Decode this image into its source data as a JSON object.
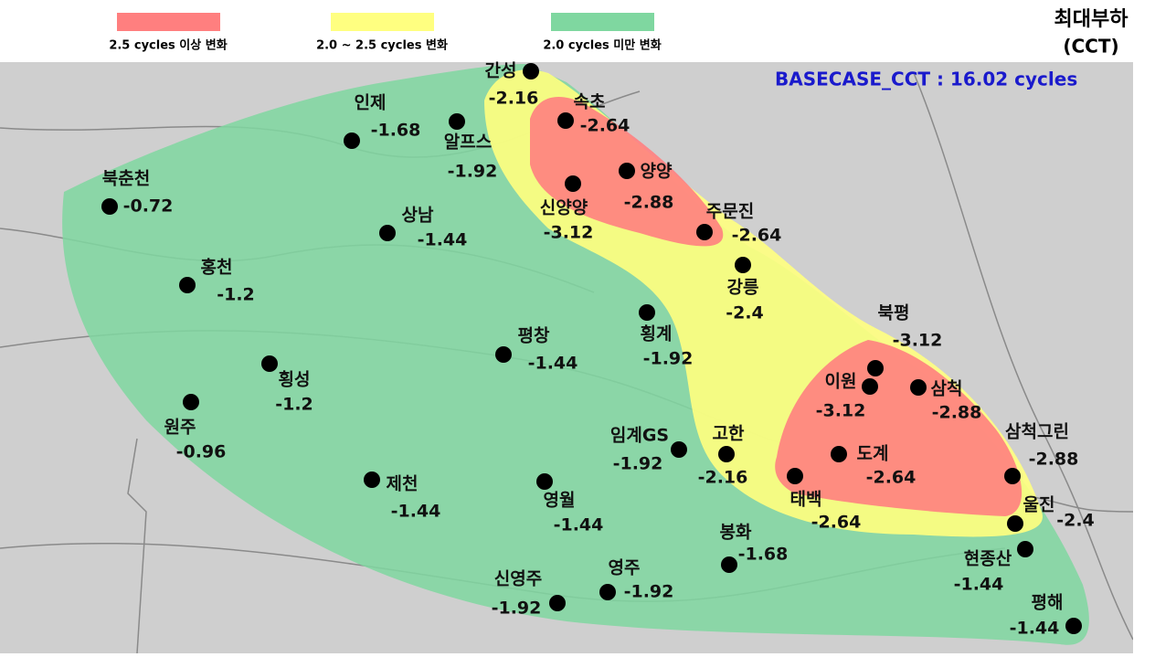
{
  "legend": [
    {
      "label": "2.5 cycles 이상 변화",
      "color": "#ff7f7f"
    },
    {
      "label": "2.0 ~ 2.5 cycles 변화",
      "color": "#ffff80"
    },
    {
      "label": "2.0 cycles 미만 변화",
      "color": "#7fd7a0"
    }
  ],
  "title": {
    "line1": "최대부하",
    "line2": "(CCT)"
  },
  "basecase": "BASECASE_CCT : 16.02 cycles",
  "points": [
    {
      "name": "간성",
      "value": "-2.16"
    },
    {
      "name": "인제",
      "value": "-1.68"
    },
    {
      "name": "알프스",
      "value": "-1.92"
    },
    {
      "name": "속초",
      "value": "-2.64"
    },
    {
      "name": "양양",
      "value": "-2.88"
    },
    {
      "name": "신양양",
      "value": "-3.12"
    },
    {
      "name": "북춘천",
      "value": "-0.72"
    },
    {
      "name": "상남",
      "value": "-1.44"
    },
    {
      "name": "주문진",
      "value": "-2.64"
    },
    {
      "name": "홍천",
      "value": "-1.2"
    },
    {
      "name": "강릉",
      "value": "-2.4"
    },
    {
      "name": "횡계",
      "value": "-1.92"
    },
    {
      "name": "평창",
      "value": "-1.44"
    },
    {
      "name": "북평",
      "value": "-3.12"
    },
    {
      "name": "횡성",
      "value": "-1.2"
    },
    {
      "name": "이원",
      "value": "-3.12"
    },
    {
      "name": "삼척",
      "value": "-2.88"
    },
    {
      "name": "원주",
      "value": "-0.96"
    },
    {
      "name": "임계GS",
      "value": "-1.92"
    },
    {
      "name": "고한",
      "value": "-2.16"
    },
    {
      "name": "도계",
      "value": "-2.64"
    },
    {
      "name": "삼척그린",
      "value": "-2.88"
    },
    {
      "name": "제천",
      "value": "-1.44"
    },
    {
      "name": "영월",
      "value": "-1.44"
    },
    {
      "name": "태백",
      "value": "-2.64"
    },
    {
      "name": "울진",
      "value": "-2.4"
    },
    {
      "name": "봉화",
      "value": "-1.68"
    },
    {
      "name": "현종산",
      "value": "-1.44"
    },
    {
      "name": "영주",
      "value": "-1.92"
    },
    {
      "name": "신영주",
      "value": "-1.92"
    },
    {
      "name": "평해",
      "value": "-1.44"
    }
  ]
}
